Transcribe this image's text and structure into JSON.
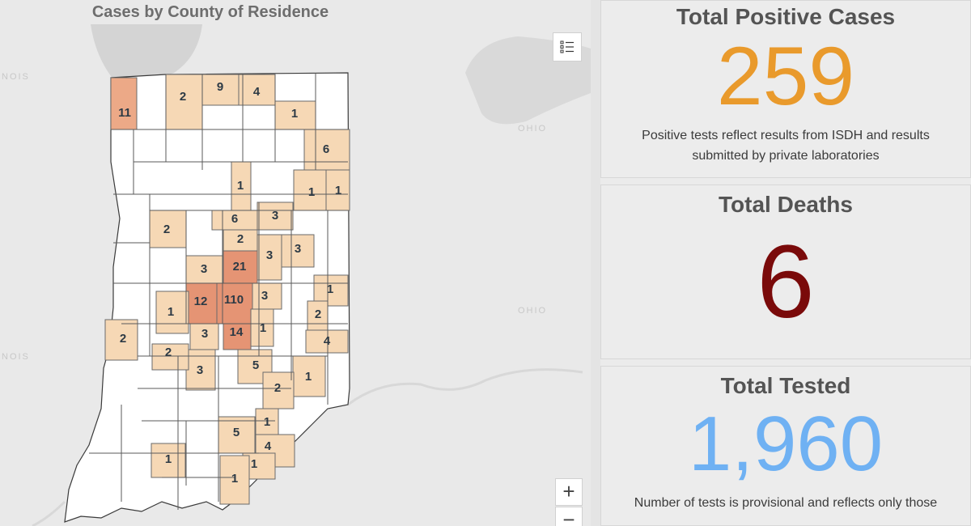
{
  "map": {
    "title": "Cases by County of Residence",
    "basemap_labels": [
      "NOIS",
      "OHIO",
      "OHIO",
      "NOIS"
    ],
    "colors": {
      "no_cases": "#ffffff",
      "low": "#f6d8b5",
      "medium": "#eca987",
      "high": "#e59474",
      "border": "#3a3a3a"
    },
    "county_labels": [
      "11",
      "2",
      "9",
      "4",
      "1",
      "6",
      "1",
      "1",
      "1",
      "6",
      "3",
      "2",
      "2",
      "3",
      "21",
      "3",
      "3",
      "1",
      "12",
      "110",
      "3",
      "1",
      "2",
      "3",
      "14",
      "1",
      "4",
      "2",
      "3",
      "5",
      "2",
      "1",
      "2",
      "1",
      "5",
      "4",
      "1",
      "1",
      "1"
    ],
    "legend_icon": "legend-list-icon",
    "zoom_in_label": "+",
    "zoom_out_label": "−"
  },
  "cards": {
    "positive": {
      "title": "Total Positive Cases",
      "value": "259",
      "note_line1": "Positive tests reflect results from ISDH and results",
      "note_line2": "submitted by private laboratories",
      "color": "#e99a2c"
    },
    "deaths": {
      "title": "Total Deaths",
      "value": "6",
      "color": "#7a0a0a"
    },
    "tested": {
      "title": "Total Tested",
      "value": "1,960",
      "note_line1": "Number of tests is provisional and reflects only those",
      "color": "#6fb1f3"
    }
  }
}
